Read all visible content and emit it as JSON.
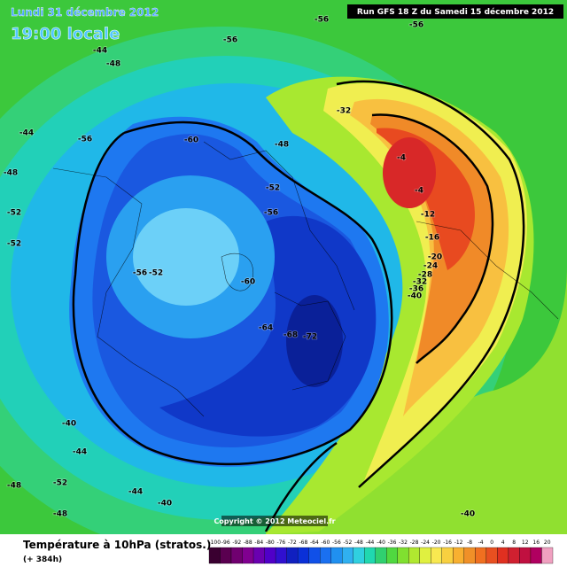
{
  "header": {
    "date": "Lundi 31 décembre 2012",
    "time": "19:00 locale",
    "run": "Run GFS 18 Z du Samedi 15 décembre 2012"
  },
  "map": {
    "contour_labels": [
      "-56",
      "-56",
      "-56",
      "-44",
      "-48",
      "-44",
      "-48",
      "-56",
      "-60",
      "-48",
      "-52",
      "-56",
      "-52",
      "-56",
      "-52",
      "-60",
      "-64",
      "-68",
      "-72",
      "-32",
      "-4",
      "-4",
      "-12",
      "-16",
      "-20",
      "-24",
      "-28",
      "-32",
      "-36",
      "-40",
      "-40",
      "-44",
      "-52",
      "-44",
      "-48",
      "-40",
      "-40",
      "-52",
      "-48"
    ],
    "copyright": "Copyright © 2012 Meteociel.fr"
  },
  "footer": {
    "title": "Température à 10hPa (stratos.)",
    "lead": "(+ 384h)"
  },
  "legend": {
    "labels": [
      -100,
      -96,
      -92,
      -88,
      -84,
      -80,
      -76,
      -72,
      -68,
      -64,
      -60,
      -56,
      -52,
      -48,
      -44,
      -40,
      -36,
      -32,
      -28,
      -24,
      -20,
      -16,
      -12,
      -8,
      -4,
      0,
      4,
      8,
      12,
      16,
      20
    ],
    "colors": [
      "#3a0030",
      "#5a0050",
      "#700070",
      "#800090",
      "#6a00b0",
      "#5000c8",
      "#3010d0",
      "#1020c0",
      "#0a30d8",
      "#1050e8",
      "#1a70f0",
      "#2090f0",
      "#30b0f0",
      "#30d0e0",
      "#20d8b0",
      "#30d070",
      "#50d840",
      "#80e030",
      "#b0e830",
      "#e0f040",
      "#f8e850",
      "#f8d040",
      "#f8b030",
      "#f09028",
      "#f07020",
      "#e85020",
      "#e03020",
      "#d02030",
      "#c01040",
      "#b00060",
      "#f0a0c0"
    ]
  }
}
